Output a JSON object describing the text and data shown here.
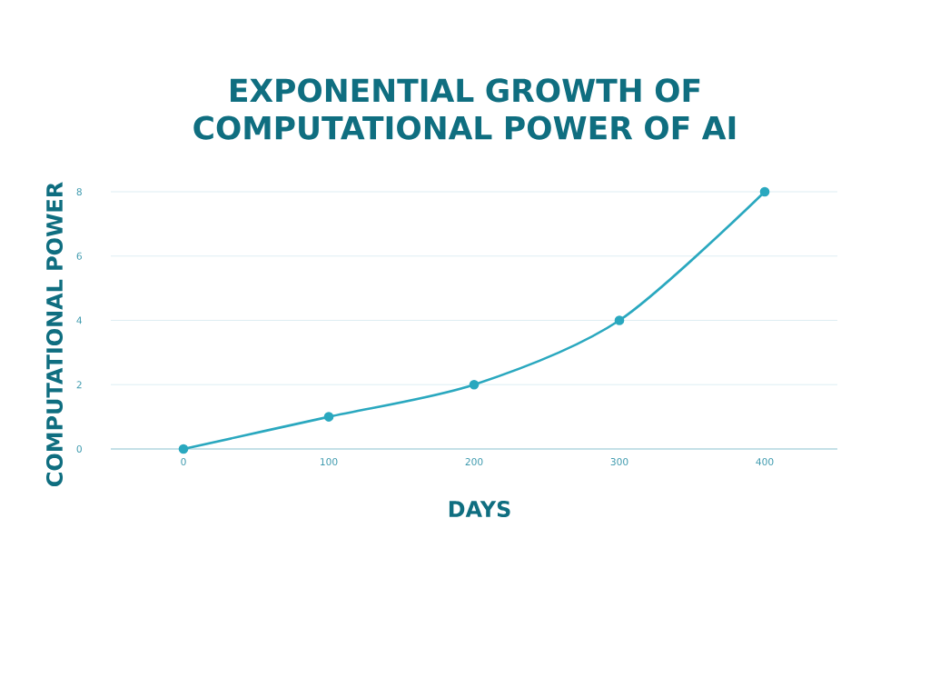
{
  "chart_data": {
    "type": "line",
    "title": "EXPONENTIAL GROWTH OF COMPUTATIONAL POWER OF AI",
    "xlabel": "DAYS",
    "ylabel": "COMPUTATIONAL POWER",
    "x": [
      0,
      100,
      200,
      300,
      400
    ],
    "series": [
      {
        "color": "#2aa8bf",
        "values": [
          0,
          1,
          2,
          4,
          8
        ]
      }
    ],
    "xlim": [
      -50,
      450
    ],
    "xticks": [
      0,
      100,
      200,
      300,
      400
    ],
    "ylim": [
      0,
      8
    ],
    "yticks": [
      0,
      2,
      4,
      6,
      8
    ],
    "grid": "y",
    "marker": "circle"
  }
}
